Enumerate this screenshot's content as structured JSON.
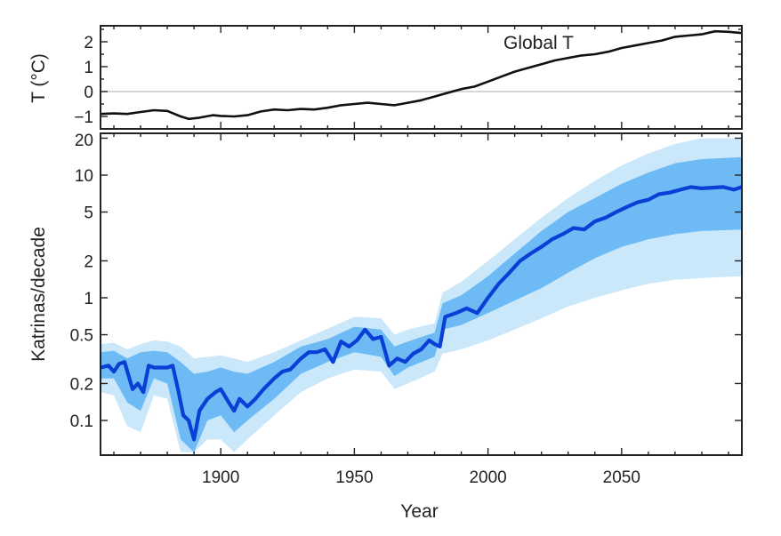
{
  "chart_data": [
    {
      "type": "line",
      "panel": "top",
      "ylabel": "T (°C)",
      "annotation": "Global T",
      "xlim": [
        1855,
        2095
      ],
      "ylim": [
        -1.5,
        2.6
      ],
      "yticks": [
        -1,
        0,
        1,
        2
      ],
      "ytick_labels": [
        "−1",
        "0",
        "1",
        "2"
      ],
      "zero_line": true,
      "series": [
        {
          "name": "Global T",
          "x": [
            1855,
            1860,
            1865,
            1870,
            1875,
            1880,
            1885,
            1888,
            1892,
            1897,
            1900,
            1905,
            1910,
            1915,
            1920,
            1925,
            1930,
            1935,
            1940,
            1945,
            1950,
            1955,
            1960,
            1965,
            1970,
            1975,
            1980,
            1985,
            1990,
            1995,
            2000,
            2005,
            2010,
            2015,
            2020,
            2025,
            2030,
            2035,
            2040,
            2045,
            2050,
            2055,
            2060,
            2065,
            2070,
            2075,
            2080,
            2085,
            2090,
            2095
          ],
          "y": [
            -0.9,
            -0.88,
            -0.9,
            -0.82,
            -0.75,
            -0.78,
            -1.0,
            -1.1,
            -1.05,
            -0.95,
            -0.98,
            -1.0,
            -0.95,
            -0.8,
            -0.72,
            -0.75,
            -0.7,
            -0.72,
            -0.65,
            -0.55,
            -0.5,
            -0.45,
            -0.5,
            -0.55,
            -0.45,
            -0.35,
            -0.2,
            -0.05,
            0.1,
            0.2,
            0.4,
            0.6,
            0.8,
            0.95,
            1.1,
            1.25,
            1.35,
            1.45,
            1.5,
            1.6,
            1.75,
            1.85,
            1.95,
            2.05,
            2.2,
            2.25,
            2.3,
            2.42,
            2.4,
            2.35
          ]
        }
      ]
    },
    {
      "type": "line",
      "panel": "bottom",
      "xlabel": "Year",
      "ylabel": "Katrinas/decade",
      "yscale": "log",
      "xlim": [
        1855,
        2095
      ],
      "ylim": [
        0.055,
        22
      ],
      "xticks": [
        1900,
        1950,
        2000,
        2050
      ],
      "xtick_labels": [
        "1900",
        "1950",
        "2000",
        "2050"
      ],
      "yticks": [
        0.1,
        0.2,
        0.5,
        1,
        2,
        5,
        10,
        20
      ],
      "ytick_labels": [
        "0.1",
        "0.2",
        "0.5",
        "1",
        "2",
        "5",
        "10",
        "20"
      ],
      "series": [
        {
          "name": "median",
          "x": [
            1855,
            1858,
            1860,
            1862,
            1864,
            1867,
            1869,
            1871,
            1873,
            1875,
            1878,
            1880,
            1882,
            1884,
            1886,
            1888,
            1890,
            1892,
            1895,
            1898,
            1900,
            1903,
            1905,
            1907,
            1910,
            1913,
            1916,
            1920,
            1923,
            1926,
            1930,
            1933,
            1936,
            1939,
            1942,
            1945,
            1948,
            1951,
            1954,
            1957,
            1960,
            1963,
            1966,
            1969,
            1972,
            1975,
            1978,
            1980,
            1982,
            1984,
            1988,
            1992,
            1996,
            2000,
            2004,
            2008,
            2012,
            2016,
            2020,
            2024,
            2028,
            2032,
            2036,
            2040,
            2044,
            2048,
            2052,
            2056,
            2060,
            2064,
            2068,
            2072,
            2076,
            2080,
            2084,
            2088,
            2092,
            2095
          ],
          "y": [
            0.27,
            0.28,
            0.25,
            0.29,
            0.3,
            0.18,
            0.2,
            0.17,
            0.28,
            0.27,
            0.27,
            0.27,
            0.28,
            0.18,
            0.11,
            0.1,
            0.07,
            0.12,
            0.15,
            0.17,
            0.18,
            0.14,
            0.12,
            0.15,
            0.13,
            0.15,
            0.18,
            0.22,
            0.25,
            0.26,
            0.32,
            0.36,
            0.36,
            0.38,
            0.3,
            0.44,
            0.4,
            0.45,
            0.55,
            0.46,
            0.48,
            0.28,
            0.32,
            0.3,
            0.35,
            0.38,
            0.45,
            0.42,
            0.4,
            0.7,
            0.75,
            0.82,
            0.75,
            1.0,
            1.3,
            1.6,
            2.0,
            2.3,
            2.6,
            3.0,
            3.3,
            3.7,
            3.6,
            4.2,
            4.5,
            5.0,
            5.5,
            6.0,
            6.3,
            7.0,
            7.2,
            7.6,
            8.0,
            7.8,
            7.9,
            8.0,
            7.6,
            8.0
          ]
        },
        {
          "name": "inner band (upper)",
          "x": [
            1855,
            1860,
            1865,
            1870,
            1875,
            1880,
            1885,
            1890,
            1895,
            1900,
            1905,
            1910,
            1920,
            1930,
            1940,
            1950,
            1960,
            1965,
            1970,
            1980,
            1983,
            1990,
            2000,
            2010,
            2020,
            2030,
            2040,
            2050,
            2060,
            2070,
            2080,
            2095
          ],
          "y": [
            0.36,
            0.37,
            0.32,
            0.36,
            0.37,
            0.36,
            0.3,
            0.24,
            0.25,
            0.27,
            0.25,
            0.24,
            0.3,
            0.4,
            0.46,
            0.58,
            0.55,
            0.4,
            0.44,
            0.52,
            0.9,
            1.05,
            1.5,
            2.3,
            3.5,
            5.0,
            6.5,
            8.5,
            10.5,
            12.5,
            13.5,
            14
          ]
        },
        {
          "name": "inner band (lower)",
          "x": [
            1855,
            1860,
            1865,
            1870,
            1875,
            1880,
            1885,
            1890,
            1895,
            1900,
            1905,
            1910,
            1920,
            1930,
            1940,
            1950,
            1960,
            1965,
            1970,
            1980,
            1983,
            1990,
            2000,
            2010,
            2020,
            2030,
            2040,
            2050,
            2060,
            2070,
            2080,
            2095
          ],
          "y": [
            0.22,
            0.22,
            0.14,
            0.12,
            0.22,
            0.2,
            0.07,
            0.055,
            0.1,
            0.11,
            0.08,
            0.1,
            0.15,
            0.24,
            0.3,
            0.36,
            0.33,
            0.23,
            0.27,
            0.33,
            0.55,
            0.6,
            0.75,
            0.95,
            1.2,
            1.6,
            2.1,
            2.6,
            3.0,
            3.3,
            3.5,
            3.6
          ]
        },
        {
          "name": "outer band (upper)",
          "x": [
            1855,
            1860,
            1865,
            1870,
            1875,
            1880,
            1885,
            1890,
            1895,
            1900,
            1905,
            1910,
            1920,
            1930,
            1940,
            1950,
            1960,
            1965,
            1970,
            1980,
            1983,
            1990,
            2000,
            2010,
            2020,
            2030,
            2040,
            2050,
            2060,
            2070,
            2080,
            2095
          ],
          "y": [
            0.42,
            0.43,
            0.38,
            0.42,
            0.45,
            0.44,
            0.4,
            0.32,
            0.33,
            0.34,
            0.32,
            0.3,
            0.36,
            0.45,
            0.56,
            0.7,
            0.68,
            0.5,
            0.55,
            0.62,
            1.1,
            1.35,
            2.0,
            3.0,
            4.5,
            6.5,
            9.0,
            12,
            15,
            18,
            20,
            20
          ]
        },
        {
          "name": "outer band (lower)",
          "x": [
            1855,
            1860,
            1865,
            1870,
            1875,
            1880,
            1885,
            1890,
            1895,
            1900,
            1905,
            1910,
            1920,
            1930,
            1940,
            1950,
            1960,
            1965,
            1970,
            1980,
            1983,
            1990,
            2000,
            2010,
            2020,
            2030,
            2040,
            2050,
            2060,
            2070,
            2080,
            2095
          ],
          "y": [
            0.17,
            0.16,
            0.09,
            0.08,
            0.16,
            0.15,
            0.055,
            0.055,
            0.07,
            0.07,
            0.055,
            0.07,
            0.11,
            0.17,
            0.22,
            0.26,
            0.25,
            0.18,
            0.2,
            0.25,
            0.35,
            0.38,
            0.45,
            0.55,
            0.68,
            0.85,
            1.0,
            1.15,
            1.3,
            1.4,
            1.45,
            1.5
          ]
        }
      ]
    }
  ],
  "colors": {
    "median": "#0a3fd6",
    "inner_band": "#6dbaf5",
    "outer_band": "#cbe8fb",
    "temperature": "#111111",
    "zero_line": "#c8c8c8",
    "axis": "#222222"
  }
}
